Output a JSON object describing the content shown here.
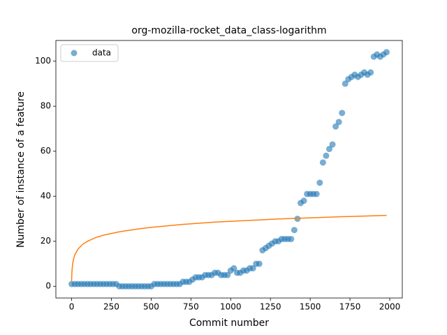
{
  "chart_data": {
    "type": "scatter",
    "title": "org-mozilla-rocket_data_class-logarithm",
    "x_label": "Commit number",
    "y_label": "Number of instance of a feature",
    "xlim": [
      -99,
      2079
    ],
    "ylim": [
      -5.2,
      109.2
    ],
    "xticks": [
      0,
      250,
      500,
      750,
      1000,
      1250,
      1500,
      1750,
      2000
    ],
    "yticks": [
      0,
      20,
      40,
      60,
      80,
      100
    ],
    "legend": "upper left",
    "series": [
      {
        "name": "data",
        "color": "#1f77b4",
        "x": [
          0,
          20,
          40,
          60,
          80,
          100,
          120,
          140,
          160,
          180,
          200,
          220,
          240,
          260,
          280,
          300,
          320,
          340,
          360,
          380,
          400,
          420,
          440,
          460,
          480,
          500,
          520,
          540,
          560,
          580,
          600,
          620,
          640,
          660,
          680,
          700,
          720,
          740,
          760,
          780,
          800,
          820,
          840,
          860,
          880,
          900,
          920,
          940,
          960,
          980,
          1000,
          1020,
          1040,
          1060,
          1080,
          1100,
          1120,
          1140,
          1160,
          1180,
          1200,
          1220,
          1240,
          1260,
          1280,
          1300,
          1320,
          1340,
          1360,
          1380,
          1400,
          1420,
          1440,
          1460,
          1480,
          1500,
          1520,
          1540,
          1560,
          1580,
          1600,
          1620,
          1640,
          1660,
          1680,
          1700,
          1720,
          1740,
          1760,
          1780,
          1800,
          1820,
          1840,
          1860,
          1880,
          1900,
          1920,
          1940,
          1960,
          1980
        ],
        "values": [
          1,
          1,
          1,
          1,
          1,
          1,
          1,
          1,
          1,
          1,
          1,
          1,
          1,
          1,
          1,
          0,
          0,
          0,
          0,
          0,
          0,
          0,
          0,
          0,
          0,
          0,
          1,
          1,
          1,
          1,
          1,
          1,
          1,
          1,
          1,
          2,
          2,
          2,
          3,
          4,
          4,
          4,
          5,
          5,
          5,
          6,
          6,
          5,
          5,
          5,
          7,
          8,
          6,
          6,
          7,
          7,
          8,
          8,
          10,
          10,
          16,
          17,
          18,
          19,
          20,
          20,
          21,
          21,
          21,
          21,
          25,
          30,
          37,
          38,
          41,
          41,
          41,
          41,
          46,
          55,
          58,
          61,
          63,
          71,
          73,
          77,
          90,
          92,
          93,
          94,
          93,
          94,
          95,
          94,
          95,
          102,
          103,
          102,
          103,
          104
        ]
      }
    ],
    "fit": {
      "color": "#ff7f0e",
      "x": [
        0,
        1,
        2,
        5,
        10,
        20,
        40,
        70,
        100,
        150,
        200,
        300,
        400,
        500,
        700,
        900,
        1100,
        1300,
        1500,
        1700,
        1980
      ],
      "values": [
        2.2,
        4.9,
        6.4,
        9.1,
        11.5,
        14.0,
        16.5,
        18.7,
        20.0,
        21.6,
        22.7,
        24.2,
        25.3,
        26.2,
        27.5,
        28.5,
        29.2,
        29.9,
        30.4,
        30.9,
        31.5
      ]
    }
  }
}
